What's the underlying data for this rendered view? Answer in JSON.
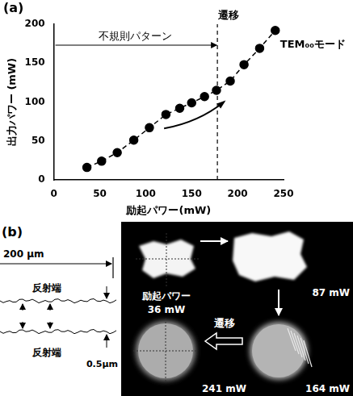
{
  "chart_data": {
    "type": "line",
    "panel_label": "(a)",
    "x_label": "励起パワー(mW)",
    "y_label": "出力パワー (mW)",
    "x": [
      36,
      52,
      69,
      87,
      104,
      122,
      137,
      150,
      164,
      177,
      192,
      207,
      224,
      241
    ],
    "values": [
      16,
      24,
      35,
      51,
      67,
      84,
      92,
      99,
      107,
      115,
      127,
      148,
      169,
      192
    ],
    "color": "#000000",
    "marker": "circle",
    "line_style": "dashed",
    "xlim": [
      0,
      250
    ],
    "xticks": [
      0,
      50,
      100,
      150,
      200,
      250
    ],
    "ylim": [
      0,
      200
    ],
    "yticks": [
      0,
      50,
      100,
      150,
      200
    ],
    "grid": false,
    "vline": {
      "x": 178,
      "label": "遷移"
    },
    "region_label": "不規則パターン",
    "curve_label": "TEM₀₀モード"
  },
  "panel_b": {
    "label": "(b)",
    "scale_text": "200 μm",
    "edge_label_top": "反射端",
    "edge_label_bottom": "反射端",
    "gap_text": "0.5μm",
    "excitation_label": "励起パワー",
    "image_labels": [
      "36 mW",
      "87 mW",
      "164 mW",
      "241 mW"
    ],
    "transition_label": "遷移"
  }
}
